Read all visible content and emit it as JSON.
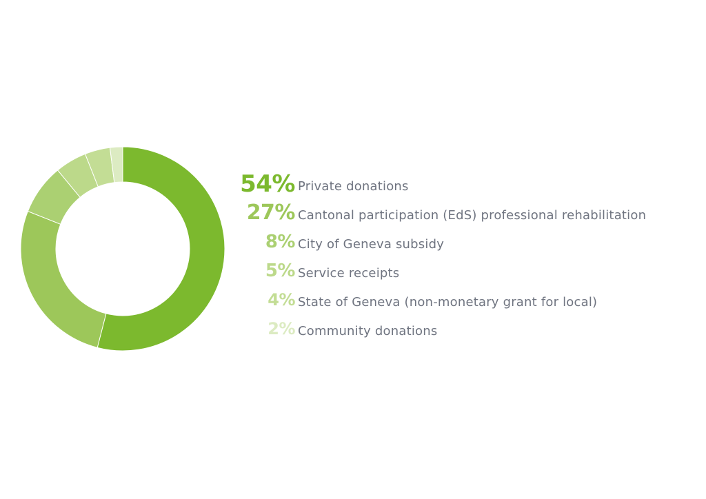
{
  "chart_data": {
    "type": "pie",
    "style": "donut",
    "legend_position": "right",
    "slices": [
      {
        "value": 54,
        "label": "54%",
        "name": "Private donations",
        "color": "#7cb92e"
      },
      {
        "value": 27,
        "label": "27%",
        "name": "Cantonal participation (EdS) professional rehabilitation",
        "color": "#9dc75a"
      },
      {
        "value": 8,
        "label": "8%",
        "name": "City of Geneva subsidy",
        "color": "#abd072"
      },
      {
        "value": 5,
        "label": "5%",
        "name": "Service receipts",
        "color": "#bcd98a"
      },
      {
        "value": 4,
        "label": "4%",
        "name": "State of Geneva (non-monetary grant for local)",
        "color": "#c3dd95"
      },
      {
        "value": 2,
        "label": "2%",
        "name": "Community donations",
        "color": "#dcebc2"
      }
    ]
  }
}
